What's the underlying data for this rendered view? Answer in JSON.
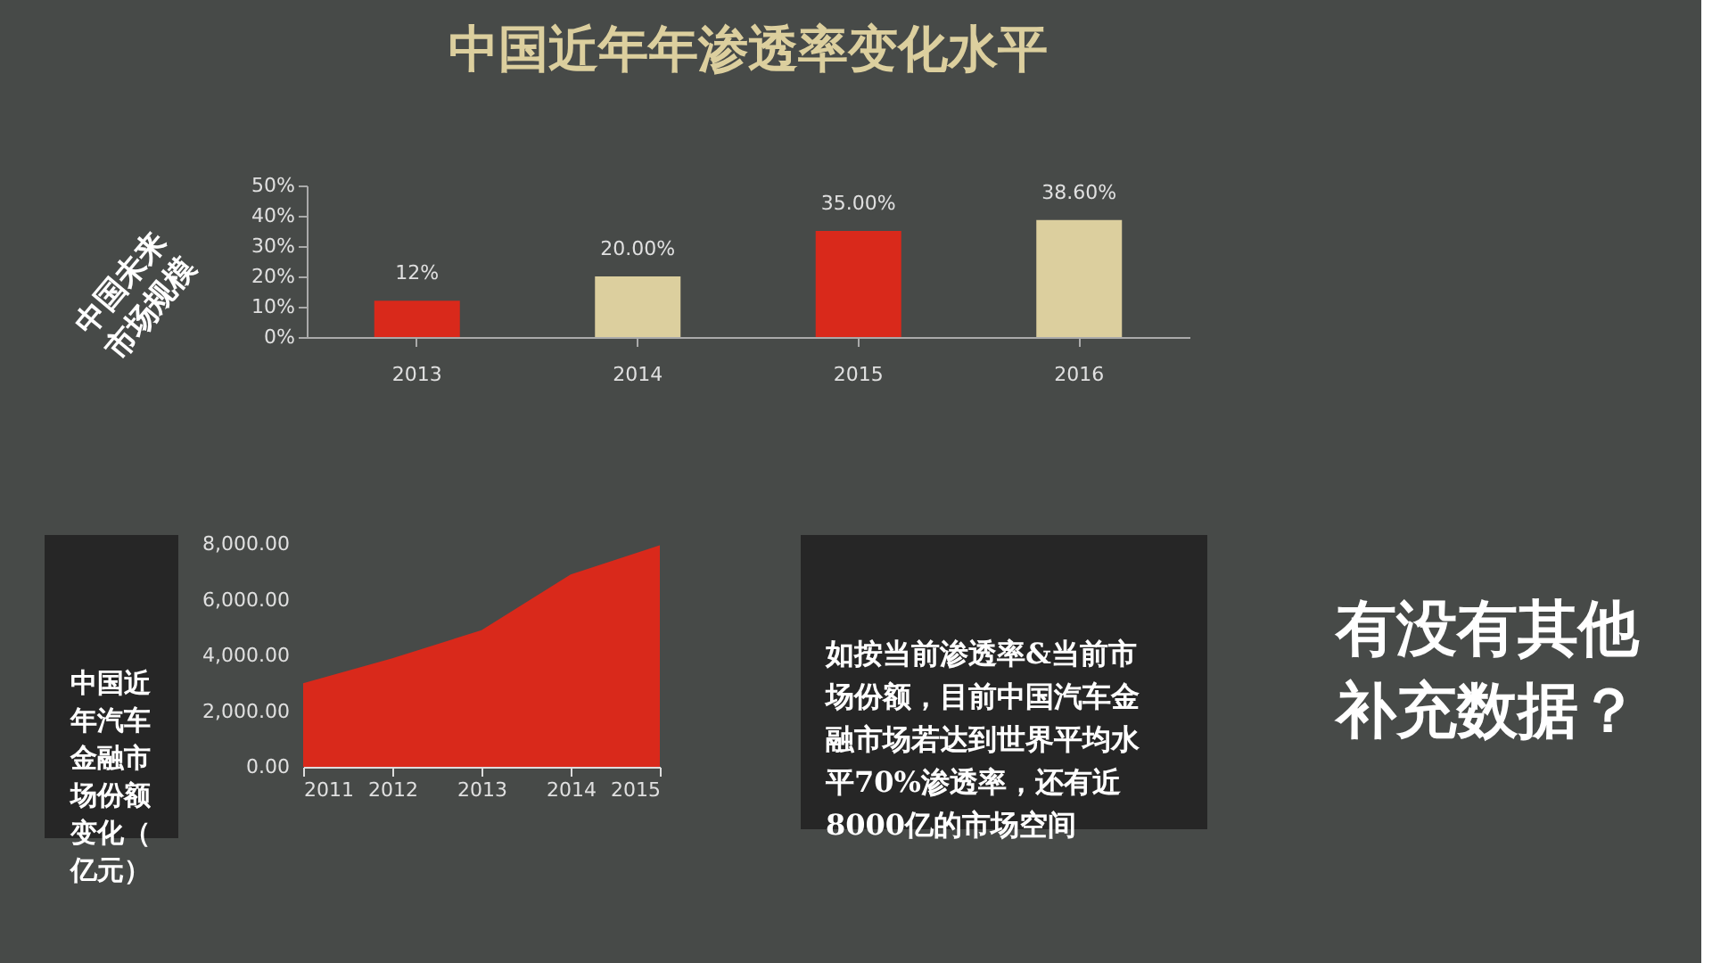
{
  "chart_data": [
    {
      "type": "bar",
      "title": "中国近年年渗透率变化水平",
      "categories": [
        "2013",
        "2014",
        "2015",
        "2016"
      ],
      "values": [
        12,
        20,
        35,
        38.6
      ],
      "colors": [
        "#d9291b",
        "#dccf9e",
        "#d9291b",
        "#dccf9e"
      ],
      "value_labels": [
        "12%",
        "20.00%",
        "35.00%",
        "38.60%"
      ],
      "ylim": [
        0,
        50
      ],
      "yticks": [
        {
          "value": 0,
          "label": "0%"
        },
        {
          "value": 10,
          "label": "10%"
        },
        {
          "value": 20,
          "label": "20%"
        },
        {
          "value": 30,
          "label": "30%"
        },
        {
          "value": 40,
          "label": "40%"
        },
        {
          "value": 50,
          "label": "50%"
        }
      ]
    },
    {
      "type": "area",
      "title": "中国近年汽车金融市场份额变化（亿元）",
      "x": [
        2011,
        2012,
        2013,
        2014,
        2015
      ],
      "series": [
        {
          "color": "#d9291b",
          "values": [
            3000,
            3900,
            4900,
            6900,
            7950
          ]
        }
      ],
      "xlim": [
        2011,
        2015
      ],
      "xticks": [
        2011,
        2012,
        2013,
        2014,
        2015
      ],
      "ylim": [
        0,
        8000
      ],
      "yticks": [
        {
          "value": 0,
          "label": "0.00"
        },
        {
          "value": 2000,
          "label": "2,000.00"
        },
        {
          "value": 4000,
          "label": "4,000.00"
        },
        {
          "value": 6000,
          "label": "6,000.00"
        },
        {
          "value": 8000,
          "label": "8,000.00"
        }
      ]
    },
    {
      "type": "other",
      "annotations": [
        "中国未来市场规模",
        "如按当前渗透率&当前市场份额，目前中国汽车金融市场若达到世界平均水平70%渗透率，还有近8000亿的市场空间",
        "有没有其他补充数据？"
      ]
    }
  ]
}
